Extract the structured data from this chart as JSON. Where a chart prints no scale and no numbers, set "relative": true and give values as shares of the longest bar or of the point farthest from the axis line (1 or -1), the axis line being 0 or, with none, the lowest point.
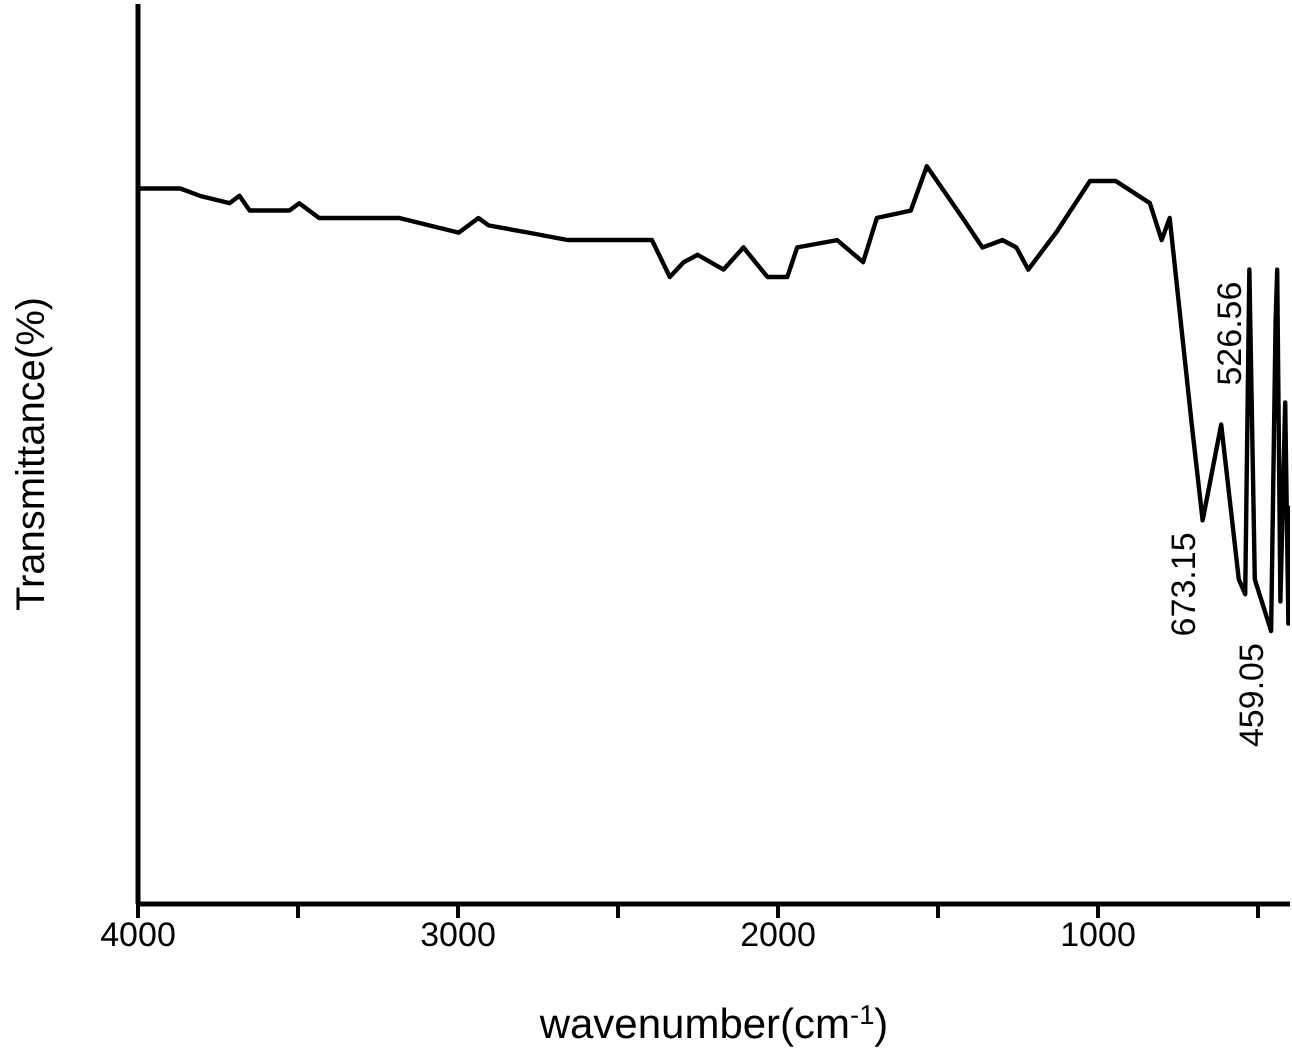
{
  "chart_data": {
    "type": "line",
    "relative": true,
    "xlabel": "wavenumber(cm$^{-1}$)",
    "ylabel": "Transmittance(%)",
    "xlim": [
      4000,
      400
    ],
    "xticks": [
      4000,
      {
        "value": 3500,
        "label": null
      },
      3000,
      {
        "value": 2500,
        "label": null
      },
      2000,
      {
        "value": 1500,
        "label": null
      },
      1000,
      {
        "value": 500,
        "label": null
      }
    ],
    "series": [
      {
        "color": "#000000",
        "x": [
          3994,
          3869,
          3807,
          3714,
          3683,
          3651,
          3527,
          3496,
          3434,
          3278,
          3185,
          2998,
          2936,
          2905,
          2780,
          2656,
          2438,
          2394,
          2338,
          2295,
          2251,
          2170,
          2108,
          2033,
          1971,
          1940,
          1815,
          1734,
          1691,
          1585,
          1535,
          1423,
          1361,
          1299,
          1255,
          1218,
          1131,
          1025,
          944,
          838,
          801,
          776,
          707,
          673,
          615,
          560,
          540,
          527,
          510,
          459,
          445,
          440,
          430,
          415,
          405,
          400
        ],
        "values": [
          0.97,
          0.97,
          0.96,
          0.95,
          0.96,
          0.94,
          0.94,
          0.95,
          0.93,
          0.93,
          0.93,
          0.91,
          0.93,
          0.92,
          0.91,
          0.9,
          0.9,
          0.9,
          0.85,
          0.87,
          0.88,
          0.86,
          0.89,
          0.85,
          0.85,
          0.89,
          0.9,
          0.87,
          0.93,
          0.94,
          1,
          0.93,
          0.89,
          0.9,
          0.89,
          0.86,
          0.91,
          0.98,
          0.98,
          0.95,
          0.9,
          0.93,
          0.65,
          0.52,
          0.65,
          0.44,
          0.42,
          0.86,
          0.44,
          0.37,
          0.79,
          0.86,
          0.41,
          0.68,
          0.38,
          0.54
        ]
      }
    ],
    "annotations": [
      {
        "text": "673.15",
        "x": 673,
        "y": 0.52
      },
      {
        "text": "526.56",
        "x": 527,
        "y": 0.86
      },
      {
        "text": "459.05",
        "x": 459,
        "y": 0.37
      }
    ]
  }
}
